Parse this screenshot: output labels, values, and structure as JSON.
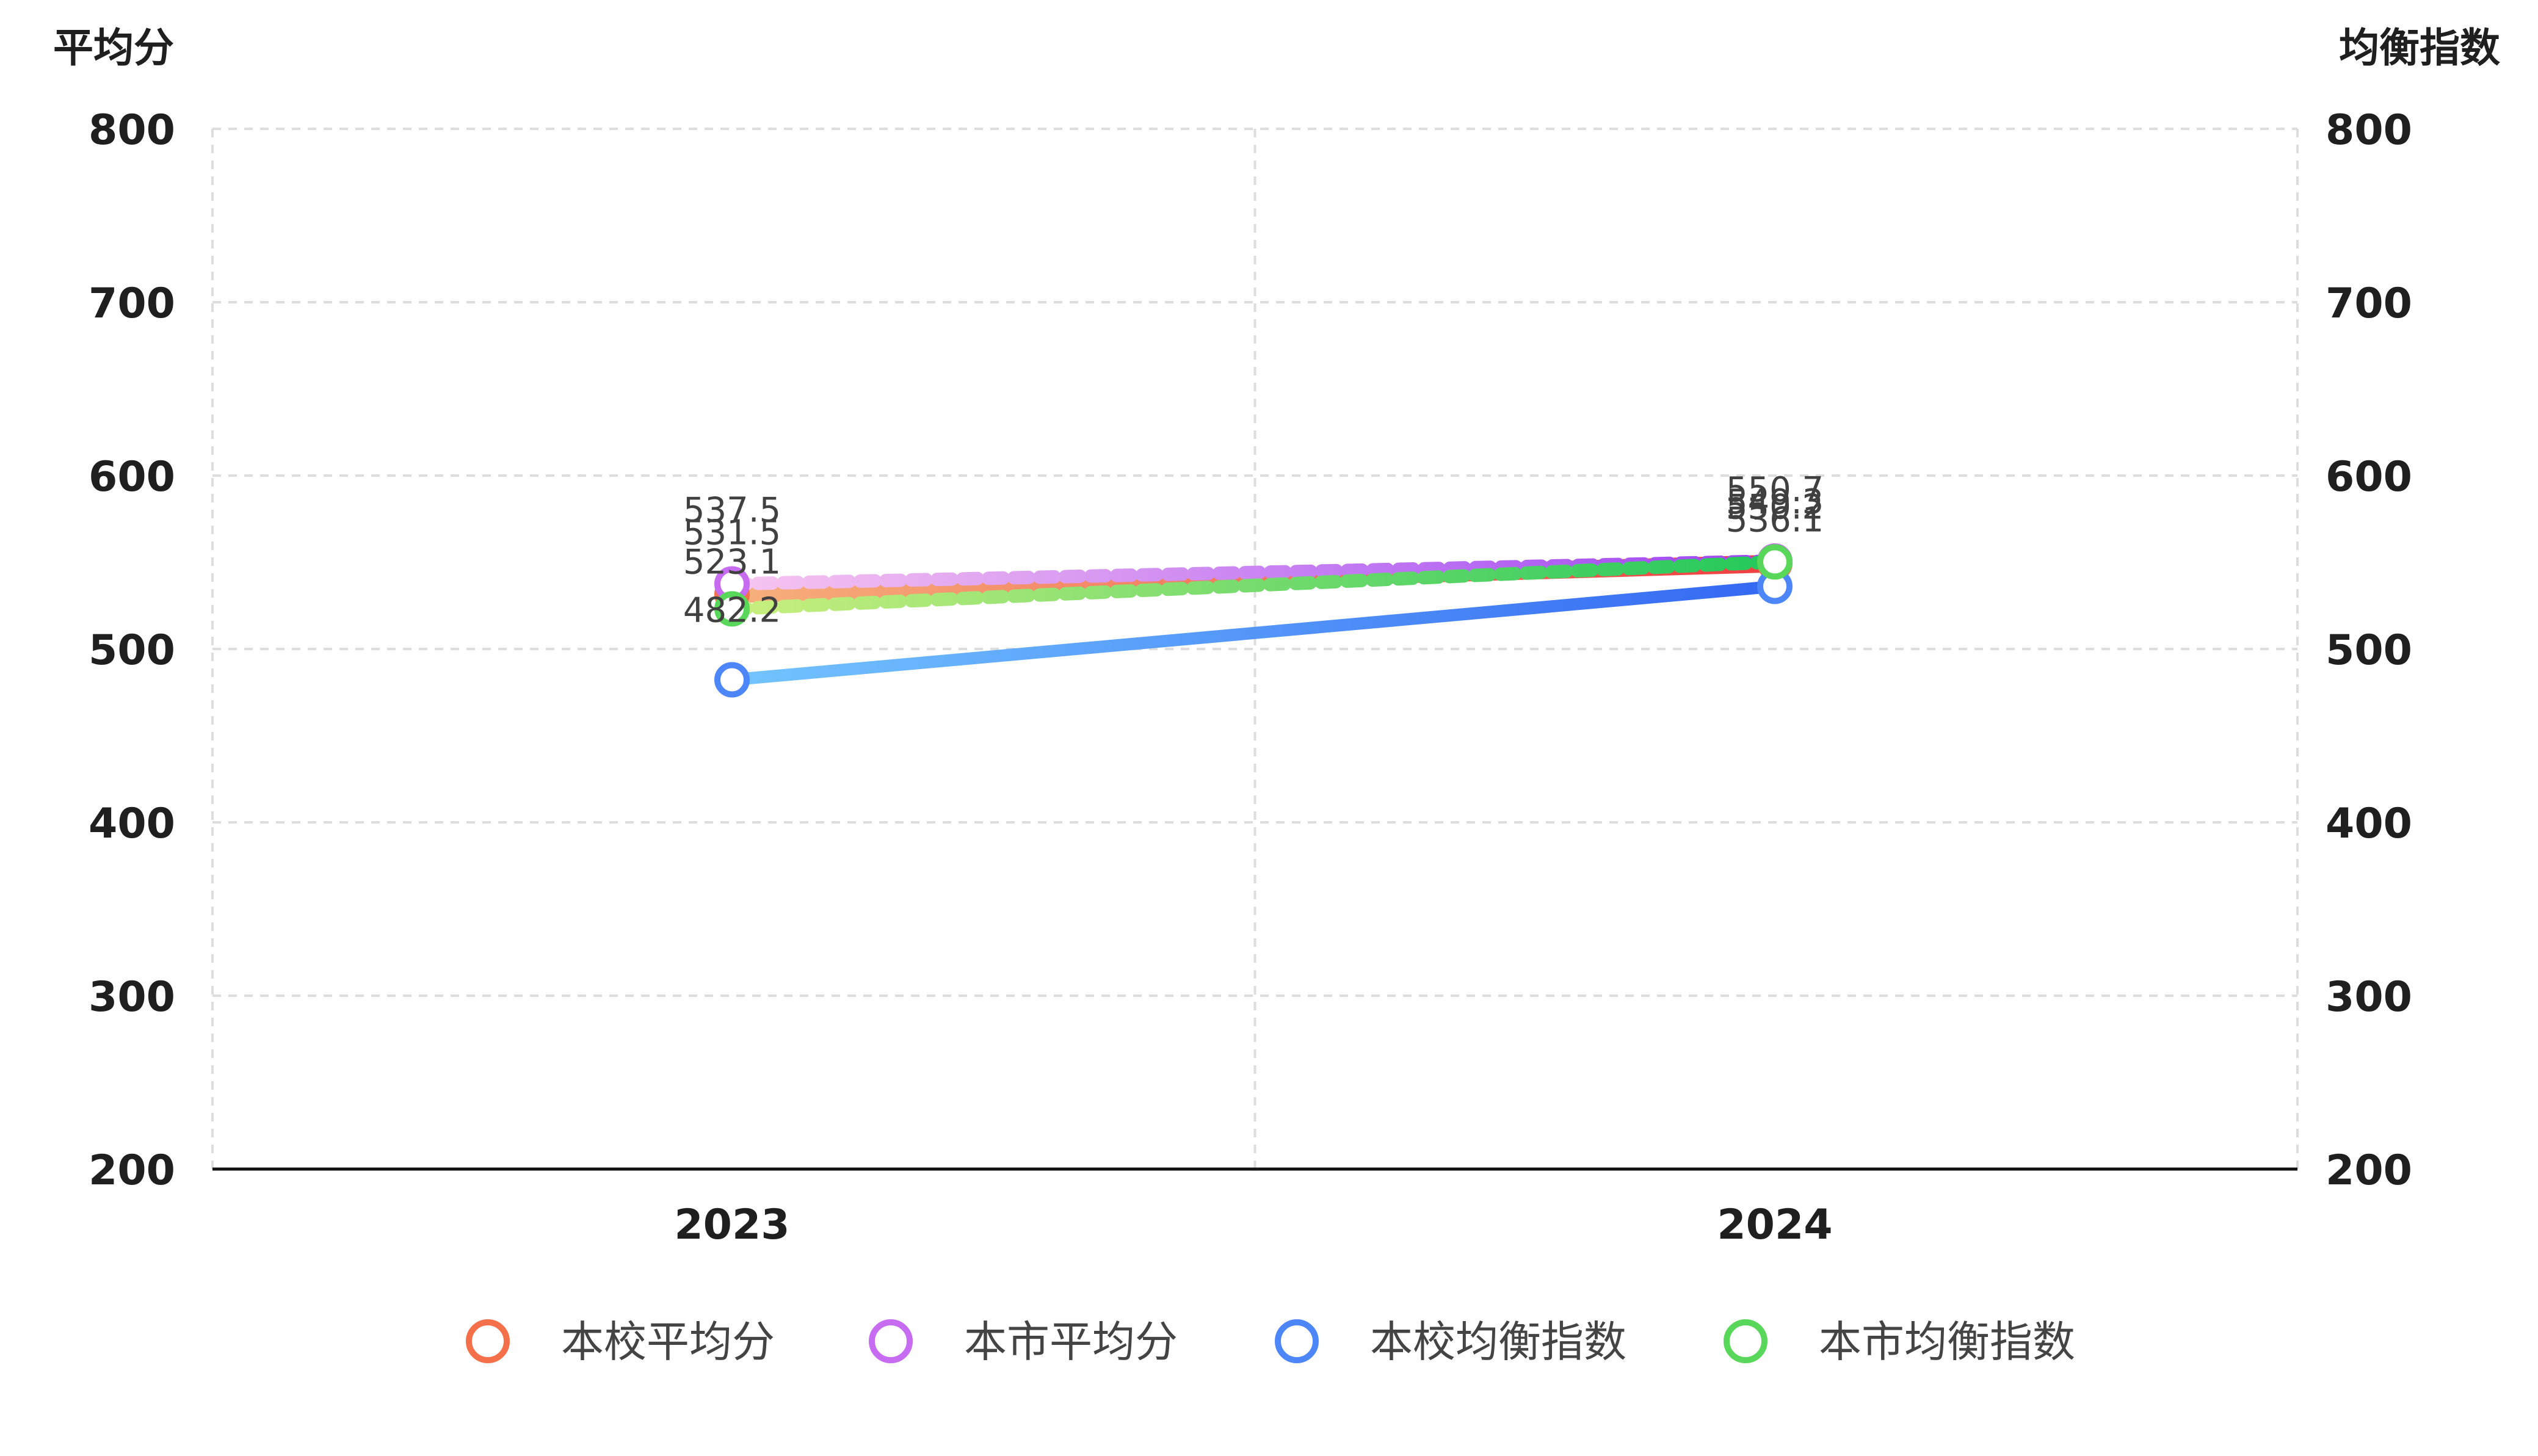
{
  "chart_data": {
    "type": "line",
    "title": "",
    "y_left_label": "平均分",
    "y_right_label": "均衡指数",
    "ylim": [
      200,
      800
    ],
    "ylim_right": [
      200,
      800
    ],
    "yticks": [
      200,
      300,
      400,
      500,
      600,
      700,
      800
    ],
    "categories": [
      "2023",
      "2024"
    ],
    "grid": true,
    "legend_position": "bottom",
    "series": [
      {
        "name": "本校平均分",
        "axis": "left",
        "values": [
          531.5,
          549.3
        ],
        "labels": [
          "531.5",
          "549.3"
        ],
        "color_start": "#f6b07c",
        "color_end": "#ef3f42",
        "marker": "#f3704a",
        "style": "solid"
      },
      {
        "name": "本市平均分",
        "axis": "left",
        "values": [
          537.5,
          550.7
        ],
        "labels": [
          "537.5",
          "550.7"
        ],
        "color_start": "#f7c6f0",
        "color_end": "#9d45f3",
        "marker": "#c76bf1",
        "style": "dotted"
      },
      {
        "name": "本校均衡指数",
        "axis": "right",
        "values": [
          482.2,
          536.1
        ],
        "labels": [
          "482.2",
          "536.1"
        ],
        "color_start": "#73c4ff",
        "color_end": "#3468f2",
        "marker": "#4d86f8",
        "style": "solid"
      },
      {
        "name": "本市均衡指数",
        "axis": "right",
        "values": [
          523.1,
          550.2
        ],
        "labels": [
          "523.1",
          "550.2"
        ],
        "color_start": "#c9ef7f",
        "color_end": "#23c85b",
        "marker": "#58d75a",
        "style": "dotted"
      }
    ]
  }
}
